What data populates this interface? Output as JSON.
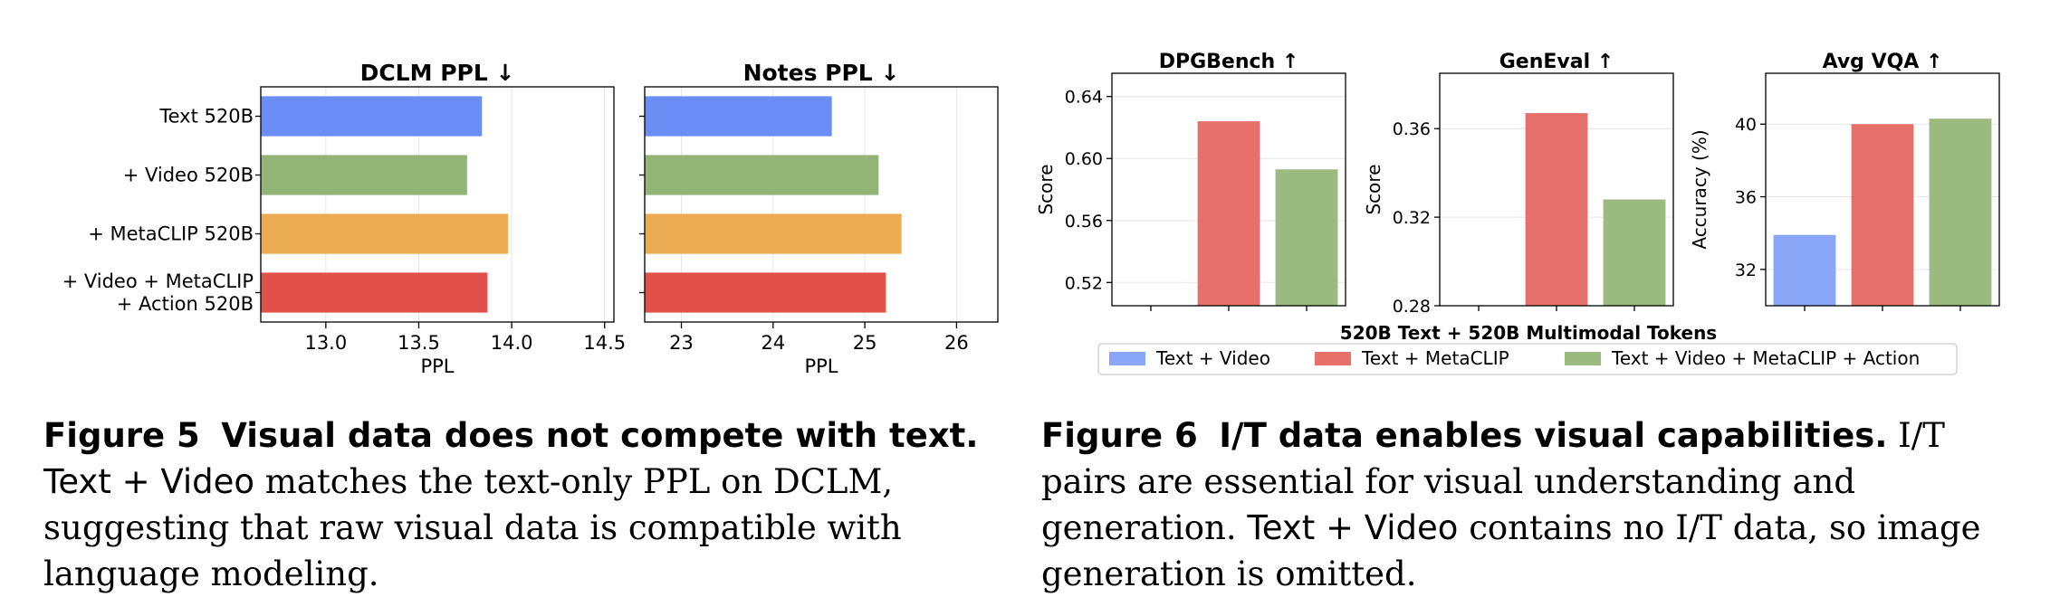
{
  "chart_data": [
    {
      "type": "bar",
      "orientation": "horizontal",
      "title": "DCLM PPL ↓",
      "xlabel": "PPL",
      "ylabel": "",
      "categories": [
        "Text 520B",
        "+ Video 520B",
        "+ MetaCLIP 520B",
        "+ Video + MetaCLIP\n+ Action 520B"
      ],
      "values": [
        13.84,
        13.76,
        13.98,
        13.87
      ],
      "colors": [
        "#6a8ef5",
        "#93b377",
        "#ebab52",
        "#e2504a"
      ],
      "xlim": [
        12.65,
        14.55
      ],
      "xticks": [
        13.0,
        13.5,
        14.0,
        14.5
      ],
      "xtick_labels": [
        "13.0",
        "13.5",
        "14.0",
        "14.5"
      ]
    },
    {
      "type": "bar",
      "orientation": "horizontal",
      "title": "Notes PPL ↓",
      "xlabel": "PPL",
      "ylabel": "",
      "categories": [
        "Text 520B",
        "+ Video 520B",
        "+ MetaCLIP 520B",
        "+ Video + MetaCLIP\n+ Action 520B"
      ],
      "values": [
        24.64,
        25.15,
        25.4,
        25.23
      ],
      "colors": [
        "#6a8ef5",
        "#93b377",
        "#ebab52",
        "#e2504a"
      ],
      "xlim": [
        22.6,
        26.45
      ],
      "xticks": [
        23,
        24,
        25,
        26
      ],
      "xtick_labels": [
        "23",
        "24",
        "25",
        "26"
      ]
    },
    {
      "type": "bar",
      "title": "DPGBench ↑",
      "ylabel": "Score",
      "categories": [
        "Text + Video",
        "Text + MetaCLIP",
        "Text + Video + MetaCLIP + Action"
      ],
      "values": [
        null,
        0.624,
        0.593
      ],
      "colors": [
        "#8aa6f7",
        "#e8706a",
        "#9bba80"
      ],
      "ylim": [
        0.505,
        0.655
      ],
      "yticks": [
        0.52,
        0.56,
        0.6,
        0.64
      ],
      "ytick_labels": [
        "0.52",
        "0.56",
        "0.60",
        "0.64"
      ]
    },
    {
      "type": "bar",
      "title": "GenEval ↑",
      "ylabel": "Score",
      "categories": [
        "Text + Video",
        "Text + MetaCLIP",
        "Text + Video + MetaCLIP + Action"
      ],
      "values": [
        null,
        0.367,
        0.328
      ],
      "colors": [
        "#8aa6f7",
        "#e8706a",
        "#9bba80"
      ],
      "ylim": [
        0.28,
        0.385
      ],
      "yticks": [
        0.28,
        0.32,
        0.36
      ],
      "ytick_labels": [
        "0.28",
        "0.32",
        "0.36"
      ]
    },
    {
      "type": "bar",
      "title": "Avg VQA ↑",
      "ylabel": "Accuracy (%)",
      "categories": [
        "Text + Video",
        "Text + MetaCLIP",
        "Text + Video + MetaCLIP + Action"
      ],
      "values": [
        33.9,
        40.0,
        40.3
      ],
      "colors": [
        "#8aa6f7",
        "#e8706a",
        "#9bba80"
      ],
      "ylim": [
        30.0,
        42.8
      ],
      "yticks": [
        32,
        36,
        40
      ],
      "ytick_labels": [
        "32",
        "36",
        "40"
      ]
    }
  ],
  "figure6": {
    "xlabel": "520B Text + 520B Multimodal Tokens",
    "legend": [
      {
        "label": "Text + Video",
        "color": "#8aa6f7"
      },
      {
        "label": "Text + MetaCLIP",
        "color": "#e8706a"
      },
      {
        "label": "Text + Video + MetaCLIP + Action",
        "color": "#9bba80"
      }
    ]
  },
  "captions": {
    "fig5_label": "Figure 5",
    "fig5_title": "Visual data does not compete with text.",
    "fig5_body_sans": "Text + Video",
    "fig5_body": "matches the text-only PPL on DCLM, suggesting that raw visual data is compatible with language modeling.",
    "fig6_label": "Figure 6",
    "fig6_title": "I/T data enables visual capabilities.",
    "fig6_body_1": "I/T pairs are essential for visual understanding and generation.",
    "fig6_body_sans": "Text + Video",
    "fig6_body_2": "contains no I/T data, so image generation is omitted."
  }
}
